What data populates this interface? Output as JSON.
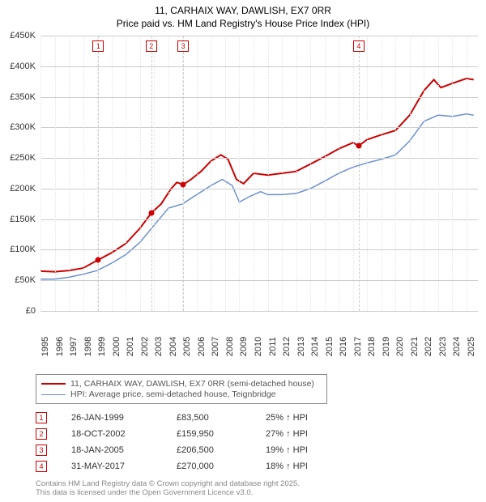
{
  "title": {
    "line1": "11, CARHAIX WAY, DAWLISH, EX7 0RR",
    "line2": "Price paid vs. HM Land Registry's House Price Index (HPI)"
  },
  "chart": {
    "type": "line",
    "background_color": "#ffffff",
    "grid_color_major": "#cccccc",
    "grid_color_minor": "#e5e5e5",
    "x": {
      "min": 1995,
      "max": 2025.8,
      "ticks": [
        1995,
        1996,
        1997,
        1998,
        1999,
        2000,
        2001,
        2002,
        2003,
        2004,
        2005,
        2006,
        2007,
        2008,
        2009,
        2010,
        2011,
        2012,
        2013,
        2014,
        2015,
        2016,
        2017,
        2018,
        2019,
        2020,
        2021,
        2022,
        2023,
        2024,
        2025
      ]
    },
    "y": {
      "min": 0,
      "max": 450000,
      "tick_step": 50000,
      "tick_labels": [
        "£0",
        "£50K",
        "£100K",
        "£150K",
        "£200K",
        "£250K",
        "£300K",
        "£350K",
        "£400K",
        "£450K"
      ]
    },
    "series": [
      {
        "name": "property",
        "label": "11, CARHAIX WAY, DAWLISH, EX7 0RR (semi-detached house)",
        "color": "#cc0000",
        "width": 2,
        "points": [
          [
            1995.0,
            65000
          ],
          [
            1996.0,
            64000
          ],
          [
            1997.0,
            66000
          ],
          [
            1998.0,
            70000
          ],
          [
            1999.07,
            83500
          ],
          [
            2000.0,
            95000
          ],
          [
            2001.0,
            110000
          ],
          [
            2002.0,
            135000
          ],
          [
            2002.8,
            159950
          ],
          [
            2003.5,
            175000
          ],
          [
            2004.2,
            200000
          ],
          [
            2004.6,
            210000
          ],
          [
            2005.05,
            206500
          ],
          [
            2005.6,
            215000
          ],
          [
            2006.3,
            228000
          ],
          [
            2007.0,
            245000
          ],
          [
            2007.7,
            255000
          ],
          [
            2008.2,
            248000
          ],
          [
            2008.8,
            215000
          ],
          [
            2009.3,
            208000
          ],
          [
            2010.0,
            225000
          ],
          [
            2011.0,
            222000
          ],
          [
            2012.0,
            225000
          ],
          [
            2013.0,
            228000
          ],
          [
            2014.0,
            240000
          ],
          [
            2015.0,
            252000
          ],
          [
            2016.0,
            265000
          ],
          [
            2017.0,
            275000
          ],
          [
            2017.41,
            270000
          ],
          [
            2018.0,
            280000
          ],
          [
            2019.0,
            288000
          ],
          [
            2020.0,
            295000
          ],
          [
            2021.0,
            320000
          ],
          [
            2022.0,
            360000
          ],
          [
            2022.7,
            378000
          ],
          [
            2023.2,
            365000
          ],
          [
            2024.0,
            372000
          ],
          [
            2025.0,
            380000
          ],
          [
            2025.5,
            378000
          ]
        ]
      },
      {
        "name": "hpi",
        "label": "HPI: Average price, semi-detached house, Teignbridge",
        "color": "#6a8fd0",
        "width": 1.5,
        "points": [
          [
            1995.0,
            52000
          ],
          [
            1996.0,
            52000
          ],
          [
            1997.0,
            55000
          ],
          [
            1998.0,
            60000
          ],
          [
            1999.0,
            66000
          ],
          [
            2000.0,
            78000
          ],
          [
            2001.0,
            92000
          ],
          [
            2002.0,
            112000
          ],
          [
            2003.0,
            140000
          ],
          [
            2004.0,
            168000
          ],
          [
            2005.0,
            175000
          ],
          [
            2006.0,
            190000
          ],
          [
            2007.0,
            205000
          ],
          [
            2007.8,
            215000
          ],
          [
            2008.5,
            205000
          ],
          [
            2009.0,
            178000
          ],
          [
            2009.8,
            188000
          ],
          [
            2010.5,
            195000
          ],
          [
            2011.0,
            190000
          ],
          [
            2012.0,
            190000
          ],
          [
            2013.0,
            192000
          ],
          [
            2014.0,
            200000
          ],
          [
            2015.0,
            212000
          ],
          [
            2016.0,
            225000
          ],
          [
            2017.0,
            235000
          ],
          [
            2018.0,
            242000
          ],
          [
            2019.0,
            248000
          ],
          [
            2020.0,
            255000
          ],
          [
            2021.0,
            278000
          ],
          [
            2022.0,
            310000
          ],
          [
            2023.0,
            320000
          ],
          [
            2024.0,
            318000
          ],
          [
            2025.0,
            322000
          ],
          [
            2025.5,
            320000
          ]
        ]
      }
    ],
    "sale_markers": {
      "color": "#cc0000",
      "items": [
        {
          "n": "1",
          "x": 1999.07,
          "y": 83500
        },
        {
          "n": "2",
          "x": 2002.8,
          "y": 159950
        },
        {
          "n": "3",
          "x": 2005.05,
          "y": 206500
        },
        {
          "n": "4",
          "x": 2017.41,
          "y": 270000
        }
      ]
    }
  },
  "legend": {
    "rows": [
      {
        "color": "#cc0000",
        "width": 2,
        "label": "11, CARHAIX WAY, DAWLISH, EX7 0RR (semi-detached house)"
      },
      {
        "color": "#6a8fd0",
        "width": 1.5,
        "label": "HPI: Average price, semi-detached house, Teignbridge"
      }
    ]
  },
  "sales_table": {
    "marker_color": "#cc0000",
    "rows": [
      {
        "n": "1",
        "date": "26-JAN-1999",
        "price": "£83,500",
        "hpi": "25% ↑ HPI"
      },
      {
        "n": "2",
        "date": "18-OCT-2002",
        "price": "£159,950",
        "hpi": "27% ↑ HPI"
      },
      {
        "n": "3",
        "date": "18-JAN-2005",
        "price": "£206,500",
        "hpi": "19% ↑ HPI"
      },
      {
        "n": "4",
        "date": "31-MAY-2017",
        "price": "£270,000",
        "hpi": "18% ↑ HPI"
      }
    ]
  },
  "footer": {
    "line1": "Contains HM Land Registry data © Crown copyright and database right 2025.",
    "line2": "This data is licensed under the Open Government Licence v3.0."
  }
}
